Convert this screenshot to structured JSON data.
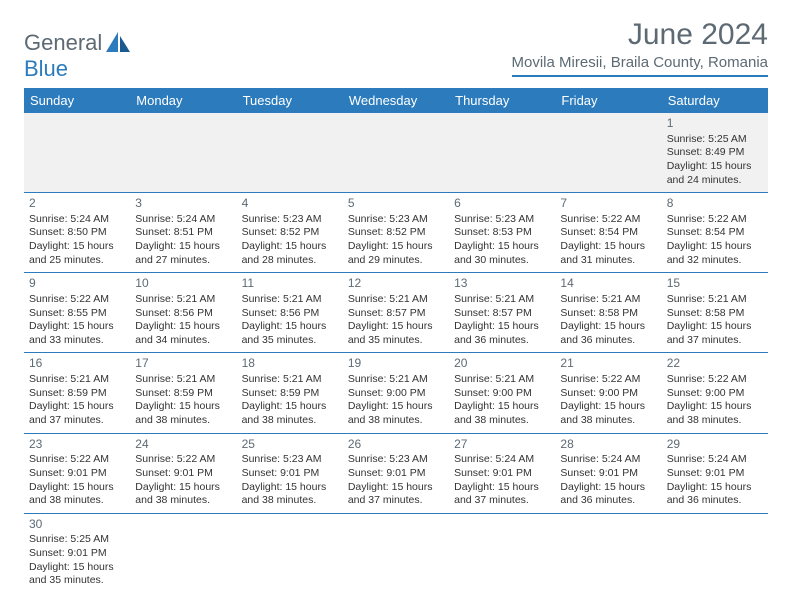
{
  "logo": {
    "text1": "General",
    "text2": "Blue"
  },
  "title": "June 2024",
  "location": "Movila Miresii, Braila County, Romania",
  "colors": {
    "brand_blue": "#2b7bbd",
    "header_gray": "#5d6a74",
    "row_alt": "#f1f1f1"
  },
  "weekdays": [
    "Sunday",
    "Monday",
    "Tuesday",
    "Wednesday",
    "Thursday",
    "Friday",
    "Saturday"
  ],
  "grid": [
    [
      null,
      null,
      null,
      null,
      null,
      null,
      {
        "n": "1",
        "sr": "Sunrise: 5:25 AM",
        "ss": "Sunset: 8:49 PM",
        "d1": "Daylight: 15 hours",
        "d2": "and 24 minutes."
      }
    ],
    [
      {
        "n": "2",
        "sr": "Sunrise: 5:24 AM",
        "ss": "Sunset: 8:50 PM",
        "d1": "Daylight: 15 hours",
        "d2": "and 25 minutes."
      },
      {
        "n": "3",
        "sr": "Sunrise: 5:24 AM",
        "ss": "Sunset: 8:51 PM",
        "d1": "Daylight: 15 hours",
        "d2": "and 27 minutes."
      },
      {
        "n": "4",
        "sr": "Sunrise: 5:23 AM",
        "ss": "Sunset: 8:52 PM",
        "d1": "Daylight: 15 hours",
        "d2": "and 28 minutes."
      },
      {
        "n": "5",
        "sr": "Sunrise: 5:23 AM",
        "ss": "Sunset: 8:52 PM",
        "d1": "Daylight: 15 hours",
        "d2": "and 29 minutes."
      },
      {
        "n": "6",
        "sr": "Sunrise: 5:23 AM",
        "ss": "Sunset: 8:53 PM",
        "d1": "Daylight: 15 hours",
        "d2": "and 30 minutes."
      },
      {
        "n": "7",
        "sr": "Sunrise: 5:22 AM",
        "ss": "Sunset: 8:54 PM",
        "d1": "Daylight: 15 hours",
        "d2": "and 31 minutes."
      },
      {
        "n": "8",
        "sr": "Sunrise: 5:22 AM",
        "ss": "Sunset: 8:54 PM",
        "d1": "Daylight: 15 hours",
        "d2": "and 32 minutes."
      }
    ],
    [
      {
        "n": "9",
        "sr": "Sunrise: 5:22 AM",
        "ss": "Sunset: 8:55 PM",
        "d1": "Daylight: 15 hours",
        "d2": "and 33 minutes."
      },
      {
        "n": "10",
        "sr": "Sunrise: 5:21 AM",
        "ss": "Sunset: 8:56 PM",
        "d1": "Daylight: 15 hours",
        "d2": "and 34 minutes."
      },
      {
        "n": "11",
        "sr": "Sunrise: 5:21 AM",
        "ss": "Sunset: 8:56 PM",
        "d1": "Daylight: 15 hours",
        "d2": "and 35 minutes."
      },
      {
        "n": "12",
        "sr": "Sunrise: 5:21 AM",
        "ss": "Sunset: 8:57 PM",
        "d1": "Daylight: 15 hours",
        "d2": "and 35 minutes."
      },
      {
        "n": "13",
        "sr": "Sunrise: 5:21 AM",
        "ss": "Sunset: 8:57 PM",
        "d1": "Daylight: 15 hours",
        "d2": "and 36 minutes."
      },
      {
        "n": "14",
        "sr": "Sunrise: 5:21 AM",
        "ss": "Sunset: 8:58 PM",
        "d1": "Daylight: 15 hours",
        "d2": "and 36 minutes."
      },
      {
        "n": "15",
        "sr": "Sunrise: 5:21 AM",
        "ss": "Sunset: 8:58 PM",
        "d1": "Daylight: 15 hours",
        "d2": "and 37 minutes."
      }
    ],
    [
      {
        "n": "16",
        "sr": "Sunrise: 5:21 AM",
        "ss": "Sunset: 8:59 PM",
        "d1": "Daylight: 15 hours",
        "d2": "and 37 minutes."
      },
      {
        "n": "17",
        "sr": "Sunrise: 5:21 AM",
        "ss": "Sunset: 8:59 PM",
        "d1": "Daylight: 15 hours",
        "d2": "and 38 minutes."
      },
      {
        "n": "18",
        "sr": "Sunrise: 5:21 AM",
        "ss": "Sunset: 8:59 PM",
        "d1": "Daylight: 15 hours",
        "d2": "and 38 minutes."
      },
      {
        "n": "19",
        "sr": "Sunrise: 5:21 AM",
        "ss": "Sunset: 9:00 PM",
        "d1": "Daylight: 15 hours",
        "d2": "and 38 minutes."
      },
      {
        "n": "20",
        "sr": "Sunrise: 5:21 AM",
        "ss": "Sunset: 9:00 PM",
        "d1": "Daylight: 15 hours",
        "d2": "and 38 minutes."
      },
      {
        "n": "21",
        "sr": "Sunrise: 5:22 AM",
        "ss": "Sunset: 9:00 PM",
        "d1": "Daylight: 15 hours",
        "d2": "and 38 minutes."
      },
      {
        "n": "22",
        "sr": "Sunrise: 5:22 AM",
        "ss": "Sunset: 9:00 PM",
        "d1": "Daylight: 15 hours",
        "d2": "and 38 minutes."
      }
    ],
    [
      {
        "n": "23",
        "sr": "Sunrise: 5:22 AM",
        "ss": "Sunset: 9:01 PM",
        "d1": "Daylight: 15 hours",
        "d2": "and 38 minutes."
      },
      {
        "n": "24",
        "sr": "Sunrise: 5:22 AM",
        "ss": "Sunset: 9:01 PM",
        "d1": "Daylight: 15 hours",
        "d2": "and 38 minutes."
      },
      {
        "n": "25",
        "sr": "Sunrise: 5:23 AM",
        "ss": "Sunset: 9:01 PM",
        "d1": "Daylight: 15 hours",
        "d2": "and 38 minutes."
      },
      {
        "n": "26",
        "sr": "Sunrise: 5:23 AM",
        "ss": "Sunset: 9:01 PM",
        "d1": "Daylight: 15 hours",
        "d2": "and 37 minutes."
      },
      {
        "n": "27",
        "sr": "Sunrise: 5:24 AM",
        "ss": "Sunset: 9:01 PM",
        "d1": "Daylight: 15 hours",
        "d2": "and 37 minutes."
      },
      {
        "n": "28",
        "sr": "Sunrise: 5:24 AM",
        "ss": "Sunset: 9:01 PM",
        "d1": "Daylight: 15 hours",
        "d2": "and 36 minutes."
      },
      {
        "n": "29",
        "sr": "Sunrise: 5:24 AM",
        "ss": "Sunset: 9:01 PM",
        "d1": "Daylight: 15 hours",
        "d2": "and 36 minutes."
      }
    ],
    [
      {
        "n": "30",
        "sr": "Sunrise: 5:25 AM",
        "ss": "Sunset: 9:01 PM",
        "d1": "Daylight: 15 hours",
        "d2": "and 35 minutes."
      },
      null,
      null,
      null,
      null,
      null,
      null
    ]
  ]
}
